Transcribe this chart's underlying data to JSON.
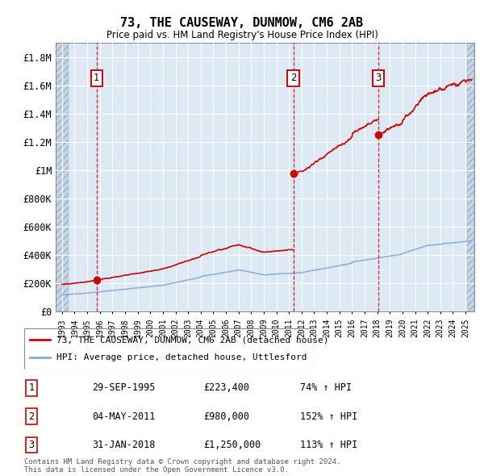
{
  "title": "73, THE CAUSEWAY, DUNMOW, CM6 2AB",
  "subtitle": "Price paid vs. HM Land Registry's House Price Index (HPI)",
  "ylabel_ticks": [
    "£0",
    "£200K",
    "£400K",
    "£600K",
    "£800K",
    "£1M",
    "£1.2M",
    "£1.4M",
    "£1.6M",
    "£1.8M"
  ],
  "ytick_values": [
    0,
    200000,
    400000,
    600000,
    800000,
    1000000,
    1200000,
    1400000,
    1600000,
    1800000
  ],
  "ylim": [
    0,
    1900000
  ],
  "xlim_start": 1992.5,
  "xlim_end": 2025.7,
  "hatch_left_end": 1993.5,
  "hatch_right_start": 2025.1,
  "sale_points": [
    {
      "label": "1",
      "date_num": 1995.75,
      "price": 223400
    },
    {
      "label": "2",
      "date_num": 2011.34,
      "price": 980000
    },
    {
      "label": "3",
      "date_num": 2018.08,
      "price": 1250000
    }
  ],
  "sale_labels": [
    {
      "num": "1",
      "date": "29-SEP-1995",
      "price": "£223,400",
      "hpi": "74% ↑ HPI"
    },
    {
      "num": "2",
      "date": "04-MAY-2011",
      "price": "£980,000",
      "hpi": "152% ↑ HPI"
    },
    {
      "num": "3",
      "date": "31-JAN-2018",
      "price": "£1,250,000",
      "hpi": "113% ↑ HPI"
    }
  ],
  "line_color_red": "#cc0000",
  "line_color_blue": "#88aad4",
  "background_plot": "#dde8f5",
  "background_hatch": "#c5d5e5",
  "grid_color": "#ffffff",
  "footer": "Contains HM Land Registry data © Crown copyright and database right 2024.\nThis data is licensed under the Open Government Licence v3.0.",
  "legend_label_red": "73, THE CAUSEWAY, DUNMOW, CM6 2AB (detached house)",
  "legend_label_blue": "HPI: Average price, detached house, Uttlesford"
}
